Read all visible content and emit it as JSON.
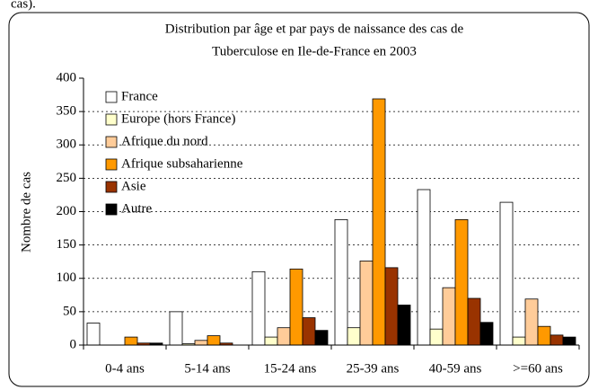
{
  "caption_fragment": "cas).",
  "chart_data": {
    "type": "bar",
    "title": [
      "Distribution par âge et par pays de naissance des cas de",
      "Tuberculose en Ile-de-France en 2003"
    ],
    "y_label": "Nombre de cas",
    "categories": [
      "0-4 ans",
      "5-14 ans",
      "15-24 ans",
      "25-39 ans",
      "40-59 ans",
      ">=60 ans"
    ],
    "series": [
      {
        "name": "France",
        "color": "#ffffff",
        "values": [
          33,
          50,
          110,
          188,
          233,
          214
        ]
      },
      {
        "name": "Europe (hors France)",
        "color": "#ffffcc",
        "values": [
          0,
          2,
          12,
          26,
          24,
          12
        ]
      },
      {
        "name": "Afrique du nord",
        "color": "#ffcc99",
        "values": [
          0,
          7,
          26,
          126,
          86,
          69
        ]
      },
      {
        "name": "Afrique subsaharienne",
        "color": "#ff9900",
        "values": [
          12,
          14,
          114,
          369,
          188,
          28
        ]
      },
      {
        "name": "Asie",
        "color": "#993300",
        "values": [
          3,
          3,
          41,
          116,
          70,
          15
        ]
      },
      {
        "name": "Autre",
        "color": "#000000",
        "values": [
          3,
          0,
          22,
          60,
          34,
          12
        ]
      }
    ],
    "ylim": [
      0,
      400
    ],
    "yticks": [
      0,
      50,
      100,
      150,
      200,
      250,
      300,
      350,
      400
    ],
    "grid": true,
    "legend": "upper left"
  }
}
